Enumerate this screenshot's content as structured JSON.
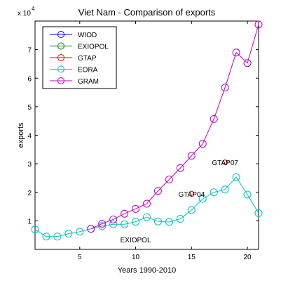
{
  "chart_data": {
    "type": "line",
    "title": "Viet Nam - Comparison of exports",
    "xlabel": "Years 1990-2010",
    "ylabel": "exports",
    "y_multiplier_label": "x 10",
    "y_multiplier_exponent": "4",
    "xlim": [
      1,
      21
    ],
    "ylim": [
      0,
      8
    ],
    "x_ticks": [
      5,
      10,
      15,
      20
    ],
    "y_ticks": [
      1,
      2,
      3,
      4,
      5,
      6,
      7
    ],
    "legend_position": "top-left",
    "series": [
      {
        "name": "WIOD",
        "color": "#0000ff",
        "x": [],
        "y": []
      },
      {
        "name": "EXIOPOL",
        "color": "#008000",
        "x": [],
        "y": []
      },
      {
        "name": "GTAP",
        "color": "#ff0000",
        "x": [
          15,
          18
        ],
        "y": [
          1.95,
          3.05
        ]
      },
      {
        "name": "EORA",
        "color": "#00bfbf",
        "x": [
          1,
          2,
          3,
          4,
          5,
          6,
          7,
          8,
          9,
          10,
          11,
          12,
          13,
          14,
          15,
          16,
          17,
          18,
          19,
          20,
          21
        ],
        "y": [
          0.7,
          0.45,
          0.45,
          0.55,
          0.62,
          0.72,
          0.82,
          0.88,
          0.88,
          0.97,
          1.13,
          0.98,
          0.96,
          1.07,
          1.38,
          1.77,
          2.0,
          2.1,
          2.53,
          1.92,
          1.27
        ]
      },
      {
        "name": "GRAM",
        "color": "#bf00bf",
        "x": [
          6,
          7,
          8,
          9,
          10,
          11,
          12,
          13,
          14,
          15,
          16,
          17,
          18,
          19,
          20,
          21
        ],
        "y": [
          0.72,
          0.9,
          1.05,
          1.25,
          1.42,
          1.6,
          2.05,
          2.45,
          2.85,
          3.28,
          3.7,
          4.57,
          5.67,
          6.9,
          6.53,
          7.88
        ]
      }
    ],
    "annotations": [
      {
        "text": "GTAP04",
        "x": 15,
        "y": 1.95
      },
      {
        "text": "GTAP07",
        "x": 18,
        "y": 3.05
      },
      {
        "text": "EXIOPOL",
        "x": 10,
        "y": 0.35
      }
    ]
  }
}
